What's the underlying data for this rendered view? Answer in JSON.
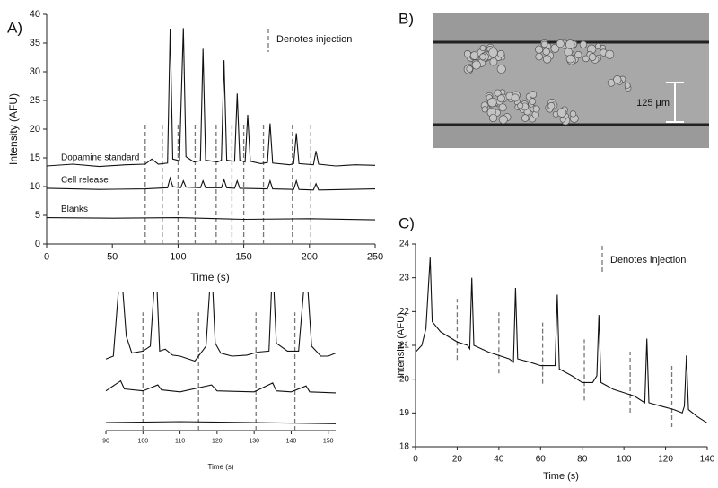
{
  "chart_data": [
    {
      "type": "line",
      "panel_label": "A)",
      "xlabel": "Time (s)",
      "ylabel": "Intensity (AFU)",
      "injection_label": "Denotes injection",
      "xlim": [
        0,
        250
      ],
      "xticks": [
        0,
        50,
        100,
        150,
        200,
        250
      ],
      "ylim": [
        0,
        40
      ],
      "yticks": [
        0,
        5,
        10,
        15,
        20,
        25,
        30,
        35,
        40
      ],
      "injections": [
        75,
        88,
        100,
        113,
        129,
        141,
        150,
        165,
        187,
        201
      ],
      "series": [
        {
          "name": "Dopamine standard",
          "color": "#111111",
          "x": [
            0,
            20,
            40,
            60,
            75,
            80,
            85,
            92,
            94,
            96,
            101,
            104,
            106,
            112,
            117,
            119,
            121,
            130,
            133,
            135,
            137,
            143,
            145,
            147,
            151,
            153,
            155,
            163,
            168,
            170,
            172,
            185,
            188,
            190,
            192,
            203,
            205,
            207,
            220,
            235,
            250
          ],
          "values": [
            13.6,
            13.9,
            13.5,
            13.8,
            13.9,
            14.8,
            13.9,
            14.1,
            37.5,
            14.8,
            14.5,
            37.6,
            15.2,
            14.3,
            14.5,
            34,
            14.6,
            14.3,
            14.6,
            32,
            14.6,
            14.4,
            26.2,
            14.6,
            14.3,
            22.5,
            14.4,
            14,
            14.2,
            21,
            14.1,
            13.8,
            14,
            19.3,
            14,
            13.8,
            16.2,
            13.9,
            13.6,
            13.8,
            13.7
          ]
        },
        {
          "name": "Cell release",
          "color": "#111111",
          "x": [
            0,
            40,
            75,
            92,
            94,
            96,
            102,
            104,
            106,
            117,
            119,
            121,
            133,
            135,
            137,
            143,
            145,
            147,
            168,
            170,
            172,
            188,
            190,
            192,
            203,
            205,
            207,
            250
          ],
          "values": [
            9.7,
            9.5,
            9.6,
            9.8,
            11.5,
            10,
            9.8,
            11,
            9.9,
            9.8,
            11,
            9.8,
            9.8,
            11.2,
            9.8,
            9.7,
            11,
            9.7,
            9.6,
            11,
            9.6,
            9.5,
            11,
            9.5,
            9.4,
            10.5,
            9.4,
            9.6
          ]
        },
        {
          "name": "Blanks",
          "color": "#111111",
          "x": [
            0,
            50,
            100,
            150,
            200,
            250
          ],
          "values": [
            4.6,
            4.5,
            4.6,
            4.3,
            4.4,
            4.2
          ]
        }
      ]
    },
    {
      "type": "line",
      "xlabel": "Time (s)",
      "xlim": [
        90,
        152
      ],
      "xticks": [
        90,
        100,
        110,
        120,
        130,
        140,
        150
      ],
      "ylim": [
        3,
        17
      ],
      "injections": [
        100,
        115,
        130.5,
        141
      ],
      "series": [
        {
          "color": "#111111",
          "x": [
            90,
            92,
            94,
            95.5,
            97,
            100,
            102,
            103.5,
            104.5,
            106,
            108,
            110,
            114,
            117,
            118.5,
            119.5,
            121,
            124,
            128,
            131,
            134,
            135,
            136,
            139,
            142,
            144,
            145.5,
            148,
            150,
            152
          ],
          "values": [
            10.2,
            10.5,
            20,
            12.5,
            10.8,
            11,
            11.5,
            20,
            11,
            11.2,
            10.6,
            10.5,
            10,
            11.5,
            20,
            11.8,
            10.8,
            10.5,
            10.6,
            10.9,
            11,
            20,
            11.8,
            11,
            11,
            20,
            11.5,
            10.5,
            10.5,
            10.8
          ]
        },
        {
          "color": "#111111",
          "x": [
            90,
            94,
            95,
            100,
            104,
            105,
            110,
            118.5,
            120,
            130,
            135,
            136,
            140,
            144,
            145,
            152
          ],
          "values": [
            7,
            8,
            7.2,
            7,
            7.6,
            7.1,
            6.9,
            7.6,
            7,
            6.9,
            7.8,
            7,
            6.9,
            7.5,
            6.9,
            6.8
          ]
        },
        {
          "color": "#111111",
          "x": [
            90,
            110,
            130,
            152
          ],
          "values": [
            3.8,
            3.9,
            3.8,
            3.7
          ]
        }
      ]
    },
    {
      "type": "line",
      "panel_label": "C)",
      "xlabel": "Time (s)",
      "ylabel": "Intensity (AFU)",
      "injection_label": "Denotes injection",
      "xlim": [
        0,
        140
      ],
      "xticks": [
        0,
        20,
        40,
        60,
        80,
        100,
        120,
        140
      ],
      "ylim": [
        18,
        24
      ],
      "yticks": [
        18,
        19,
        20,
        21,
        22,
        23,
        24
      ],
      "injections": [
        20,
        40,
        61,
        81,
        103,
        123
      ],
      "series": [
        {
          "color": "#111111",
          "x": [
            0,
            3,
            5,
            7,
            8,
            12,
            20,
            25,
            26,
            27,
            28,
            35,
            45,
            47,
            48,
            49,
            55,
            60,
            65,
            67,
            68,
            69,
            75,
            80,
            85,
            87,
            88,
            89,
            95,
            105,
            110,
            111,
            112,
            118,
            124,
            128,
            129,
            130,
            131,
            135,
            140
          ],
          "values": [
            20.8,
            21,
            21.5,
            23.6,
            21.7,
            21.4,
            21.1,
            21,
            20.9,
            23,
            21,
            20.8,
            20.6,
            20.5,
            22.7,
            20.6,
            20.5,
            20.4,
            20.4,
            20.4,
            22.5,
            20.3,
            20.1,
            19.9,
            19.9,
            20.1,
            21.9,
            19.9,
            19.7,
            19.5,
            19.3,
            21.2,
            19.3,
            19.2,
            19.1,
            19,
            19.2,
            20.7,
            19.1,
            18.9,
            18.7
          ]
        }
      ]
    }
  ],
  "micrograph": {
    "panel_label": "B)",
    "scale_bar": "125 μm"
  }
}
